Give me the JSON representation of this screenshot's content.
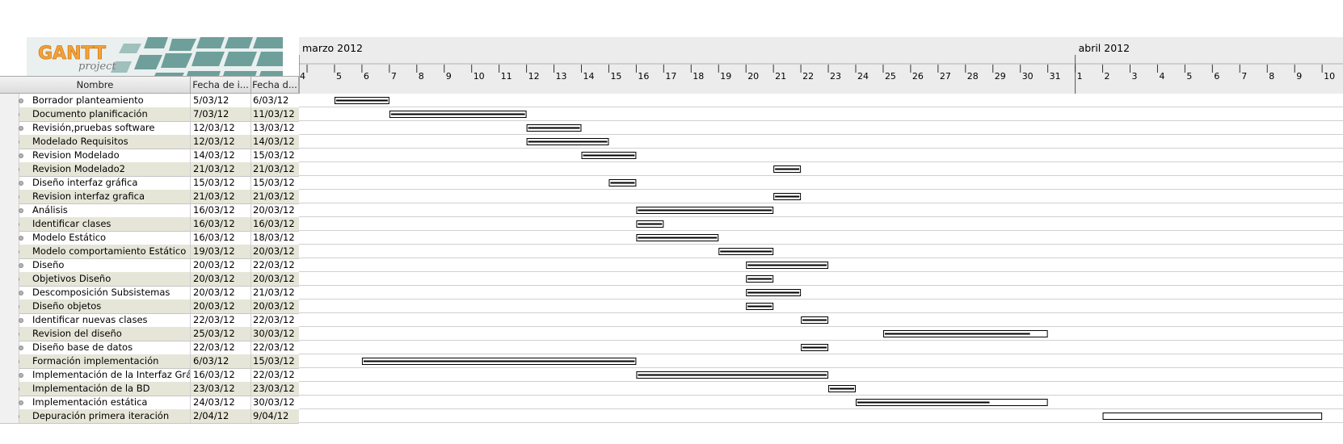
{
  "logo": {
    "brand": "GANTT",
    "tagline": "project"
  },
  "timeline": {
    "months": [
      {
        "label": "marzo 2012",
        "start_index": 0
      },
      {
        "label": "abril 2012",
        "start_index": 28
      }
    ],
    "days": [
      "4",
      "5",
      "6",
      "7",
      "8",
      "9",
      "10",
      "11",
      "12",
      "13",
      "14",
      "15",
      "16",
      "17",
      "18",
      "19",
      "20",
      "21",
      "22",
      "23",
      "24",
      "25",
      "26",
      "27",
      "28",
      "29",
      "30",
      "31",
      "1",
      "2",
      "3",
      "4",
      "5",
      "6",
      "7",
      "8",
      "9",
      "10"
    ]
  },
  "table": {
    "columns": {
      "name": "Nombre",
      "start": "Fecha de i...",
      "end": "Fecha d..."
    },
    "tasks": [
      {
        "name": "Borrador planteamiento",
        "start": "5/03/12",
        "end": "6/03/12",
        "bar_start": 1,
        "bar_end": 3
      },
      {
        "name": "Documento planificación",
        "start": "7/03/12",
        "end": "11/03/12",
        "bar_start": 3,
        "bar_end": 8
      },
      {
        "name": "Revisión,pruebas software",
        "start": "12/03/12",
        "end": "13/03/12",
        "bar_start": 8,
        "bar_end": 10
      },
      {
        "name": "Modelado Requisitos",
        "start": "12/03/12",
        "end": "14/03/12",
        "bar_start": 8,
        "bar_end": 11
      },
      {
        "name": "Revision Modelado",
        "start": "14/03/12",
        "end": "15/03/12",
        "bar_start": 10,
        "bar_end": 12
      },
      {
        "name": "Revision Modelado2",
        "start": "21/03/12",
        "end": "21/03/12",
        "bar_start": 17,
        "bar_end": 18
      },
      {
        "name": "Diseño interfaz gráfica",
        "start": "15/03/12",
        "end": "15/03/12",
        "bar_start": 11,
        "bar_end": 12
      },
      {
        "name": "Revision interfaz grafica",
        "start": "21/03/12",
        "end": "21/03/12",
        "bar_start": 17,
        "bar_end": 18
      },
      {
        "name": "Análisis",
        "start": "16/03/12",
        "end": "20/03/12",
        "bar_start": 12,
        "bar_end": 17
      },
      {
        "name": "Identificar clases",
        "start": "16/03/12",
        "end": "16/03/12",
        "bar_start": 12,
        "bar_end": 13
      },
      {
        "name": "Modelo Estático",
        "start": "16/03/12",
        "end": "18/03/12",
        "bar_start": 12,
        "bar_end": 15
      },
      {
        "name": "Modelo comportamiento Estático",
        "start": "19/03/12",
        "end": "20/03/12",
        "bar_start": 15,
        "bar_end": 17
      },
      {
        "name": "Diseño",
        "start": "20/03/12",
        "end": "22/03/12",
        "bar_start": 16,
        "bar_end": 19
      },
      {
        "name": "Objetivos Diseño",
        "start": "20/03/12",
        "end": "20/03/12",
        "bar_start": 16,
        "bar_end": 17
      },
      {
        "name": "Descomposición Subsistemas",
        "start": "20/03/12",
        "end": "21/03/12",
        "bar_start": 16,
        "bar_end": 18
      },
      {
        "name": "Diseño objetos",
        "start": "20/03/12",
        "end": "20/03/12",
        "bar_start": 16,
        "bar_end": 17
      },
      {
        "name": "Identificar nuevas clases",
        "start": "22/03/12",
        "end": "22/03/12",
        "bar_start": 18,
        "bar_end": 19
      },
      {
        "name": "Revision del diseño",
        "start": "25/03/12",
        "end": "30/03/12",
        "bar_start": 21,
        "bar_end": 27,
        "progress": 0.9
      },
      {
        "name": "Diseño base de datos",
        "start": "22/03/12",
        "end": "22/03/12",
        "bar_start": 18,
        "bar_end": 19
      },
      {
        "name": "Formación implementación",
        "start": "6/03/12",
        "end": "15/03/12",
        "bar_start": 2,
        "bar_end": 12
      },
      {
        "name": "Implementación de la Interfaz Gráf...",
        "start": "16/03/12",
        "end": "22/03/12",
        "bar_start": 12,
        "bar_end": 19
      },
      {
        "name": "Implementación de la BD",
        "start": "23/03/12",
        "end": "23/03/12",
        "bar_start": 19,
        "bar_end": 20
      },
      {
        "name": "Implementación estática",
        "start": "24/03/12",
        "end": "30/03/12",
        "bar_start": 20,
        "bar_end": 27,
        "progress": 0.7
      },
      {
        "name": "Depuración primera iteración",
        "start": "2/04/12",
        "end": "9/04/12",
        "bar_start": 29,
        "bar_end": 37,
        "progress": 0
      }
    ]
  }
}
